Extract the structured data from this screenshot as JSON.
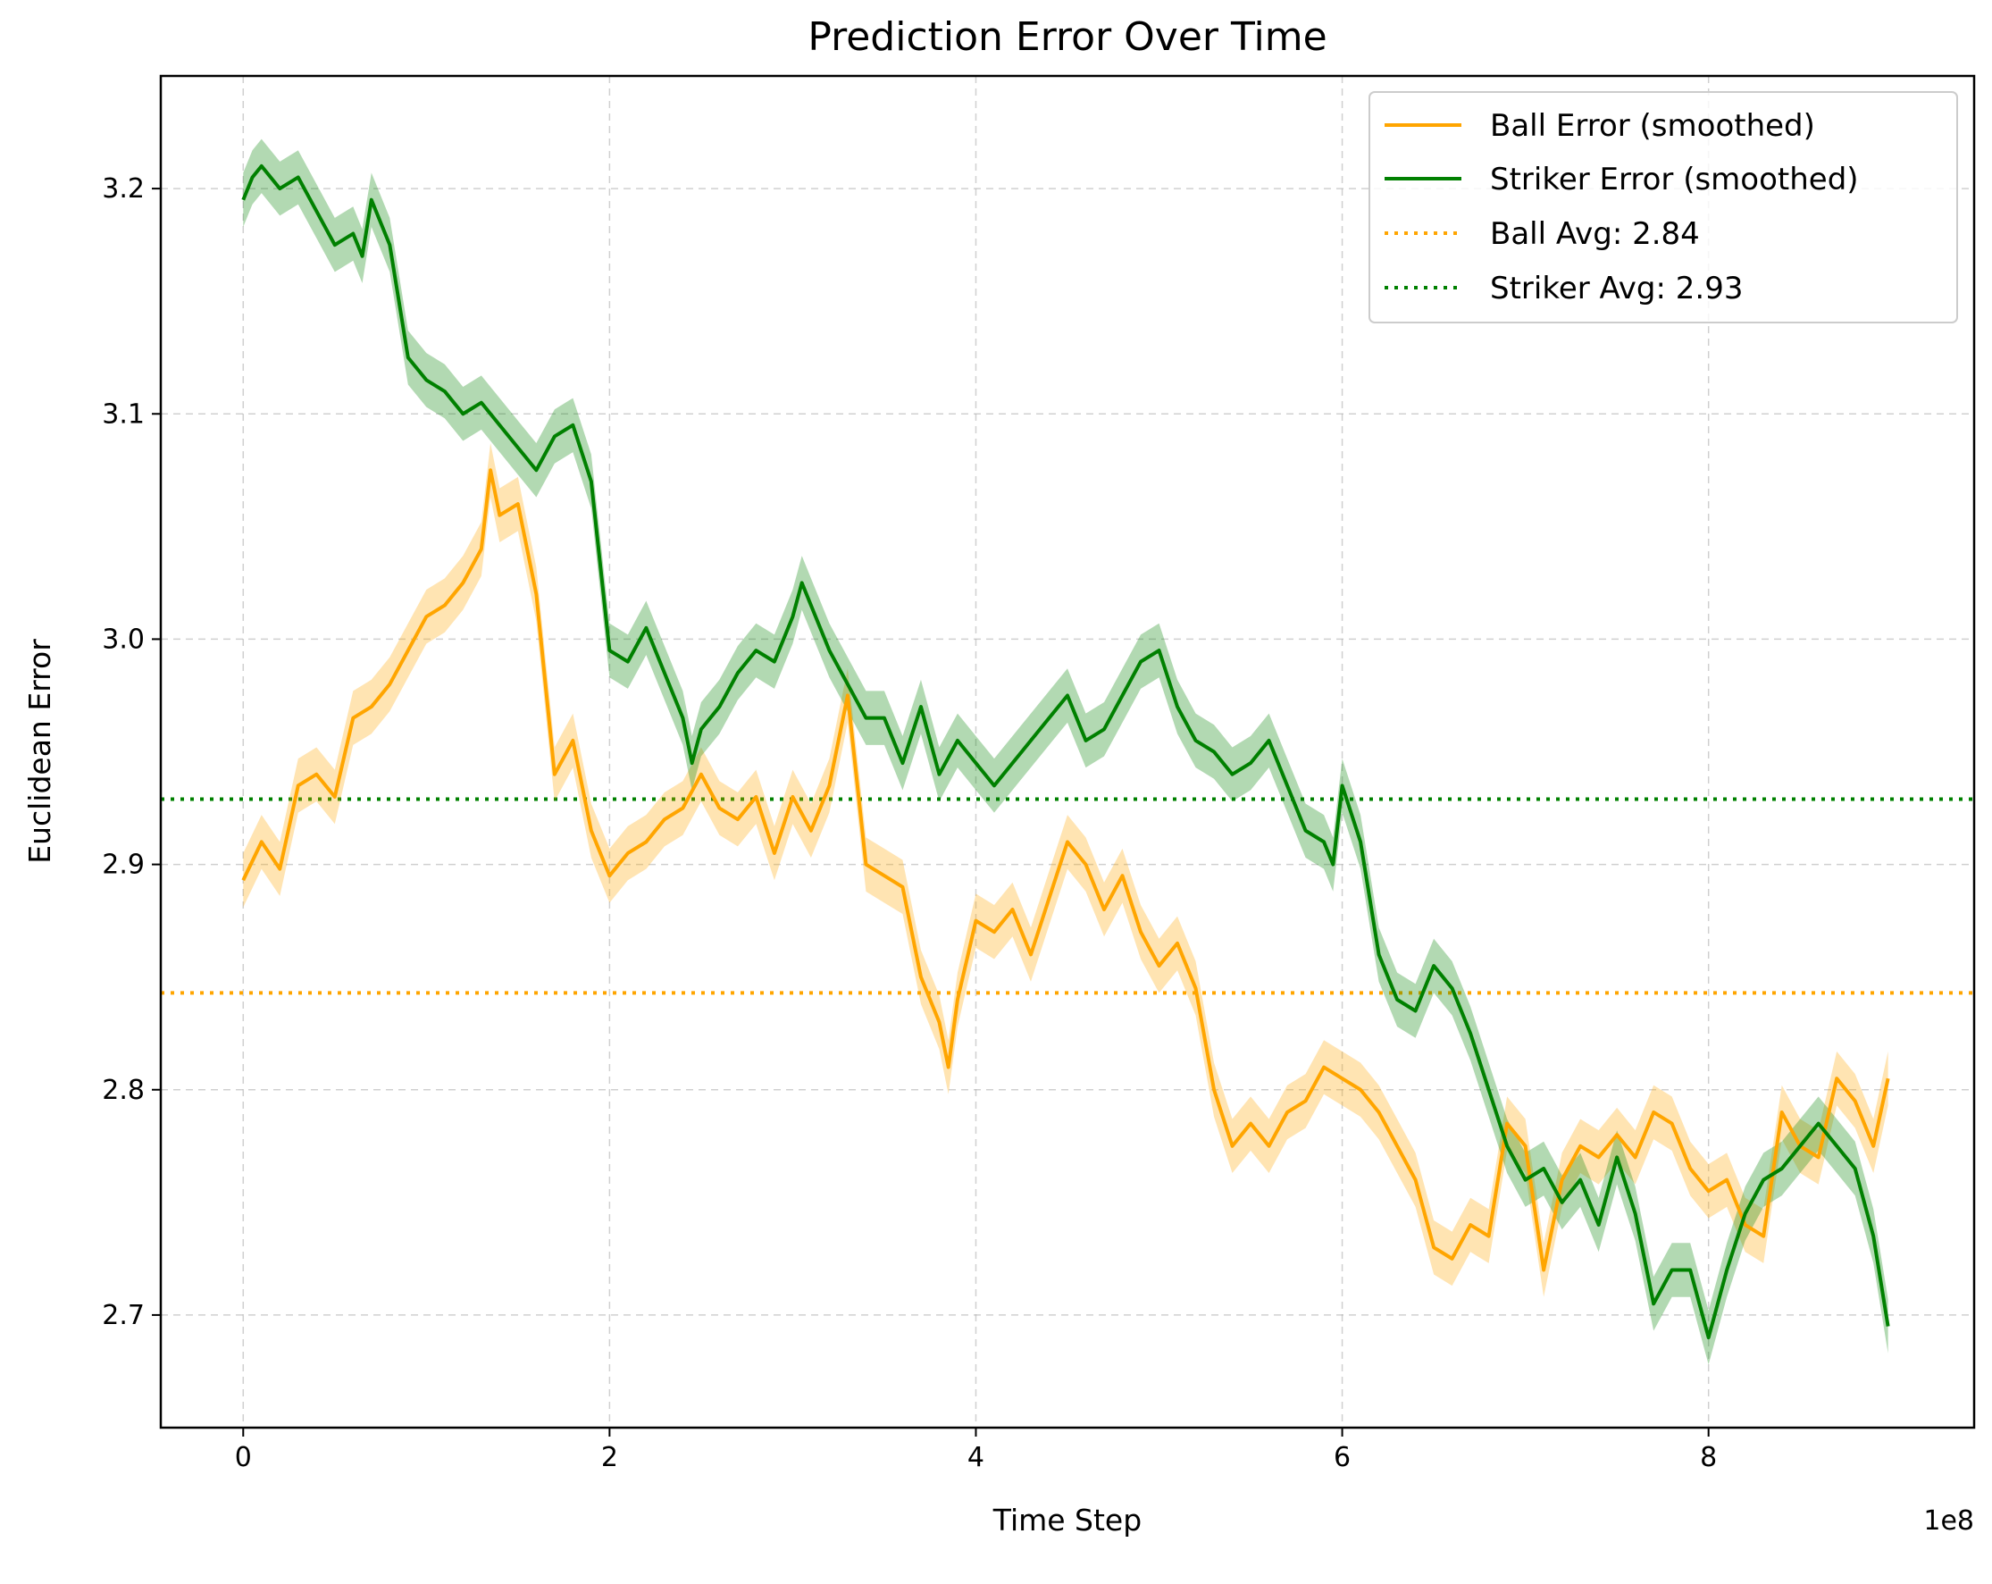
{
  "chart_data": {
    "type": "line",
    "title": "Prediction Error Over Time",
    "xlabel": "Time Step",
    "ylabel": "Euclidean Error",
    "x_offset_text": "1e8",
    "xlim": [
      -0.45,
      9.45
    ],
    "ylim": [
      2.65,
      3.25
    ],
    "x_ticks": [
      0,
      2,
      4,
      6,
      8
    ],
    "x_tick_labels": [
      "0",
      "2",
      "4",
      "6",
      "8"
    ],
    "y_ticks": [
      2.7,
      2.8,
      2.9,
      3.0,
      3.1,
      3.2
    ],
    "y_tick_labels": [
      "2.7",
      "2.8",
      "2.9",
      "3.0",
      "3.1",
      "3.2"
    ],
    "grid": true,
    "legend_position": "top-right",
    "band_halfwidth": 0.012,
    "series": [
      {
        "name": "Ball Error (smoothed)",
        "color": "#FFA500",
        "x": [
          0.0,
          0.1,
          0.2,
          0.3,
          0.4,
          0.5,
          0.6,
          0.7,
          0.8,
          0.9,
          1.0,
          1.1,
          1.2,
          1.3,
          1.35,
          1.4,
          1.5,
          1.6,
          1.7,
          1.8,
          1.9,
          2.0,
          2.1,
          2.2,
          2.3,
          2.4,
          2.5,
          2.6,
          2.7,
          2.8,
          2.9,
          3.0,
          3.1,
          3.2,
          3.3,
          3.4,
          3.5,
          3.6,
          3.7,
          3.8,
          3.85,
          3.9,
          4.0,
          4.1,
          4.2,
          4.3,
          4.4,
          4.5,
          4.6,
          4.7,
          4.8,
          4.9,
          5.0,
          5.1,
          5.2,
          5.3,
          5.4,
          5.5,
          5.6,
          5.7,
          5.8,
          5.9,
          6.0,
          6.1,
          6.2,
          6.3,
          6.4,
          6.5,
          6.6,
          6.7,
          6.8,
          6.9,
          7.0,
          7.1,
          7.2,
          7.3,
          7.4,
          7.5,
          7.6,
          7.7,
          7.8,
          7.9,
          8.0,
          8.1,
          8.2,
          8.3,
          8.4,
          8.5,
          8.6,
          8.7,
          8.8,
          8.9,
          8.98
        ],
        "y": [
          2.893,
          2.91,
          2.898,
          2.935,
          2.94,
          2.93,
          2.965,
          2.97,
          2.98,
          2.995,
          3.01,
          3.015,
          3.025,
          3.04,
          3.075,
          3.055,
          3.06,
          3.02,
          2.94,
          2.955,
          2.915,
          2.895,
          2.905,
          2.91,
          2.92,
          2.925,
          2.94,
          2.925,
          2.92,
          2.93,
          2.905,
          2.93,
          2.915,
          2.935,
          2.975,
          2.9,
          2.895,
          2.89,
          2.85,
          2.83,
          2.81,
          2.84,
          2.875,
          2.87,
          2.88,
          2.86,
          2.885,
          2.91,
          2.9,
          2.88,
          2.895,
          2.87,
          2.855,
          2.865,
          2.845,
          2.8,
          2.775,
          2.785,
          2.775,
          2.79,
          2.795,
          2.81,
          2.805,
          2.8,
          2.79,
          2.775,
          2.76,
          2.73,
          2.725,
          2.74,
          2.735,
          2.785,
          2.775,
          2.72,
          2.76,
          2.775,
          2.77,
          2.78,
          2.77,
          2.79,
          2.785,
          2.765,
          2.755,
          2.76,
          2.74,
          2.735,
          2.79,
          2.775,
          2.77,
          2.805,
          2.795,
          2.775,
          2.805
        ]
      },
      {
        "name": "Striker Error (smoothed)",
        "color": "#008000",
        "x": [
          0.0,
          0.05,
          0.1,
          0.2,
          0.3,
          0.4,
          0.5,
          0.6,
          0.65,
          0.7,
          0.8,
          0.9,
          1.0,
          1.1,
          1.2,
          1.3,
          1.4,
          1.5,
          1.6,
          1.7,
          1.8,
          1.9,
          2.0,
          2.1,
          2.2,
          2.3,
          2.4,
          2.45,
          2.5,
          2.6,
          2.7,
          2.8,
          2.9,
          3.0,
          3.05,
          3.1,
          3.2,
          3.3,
          3.4,
          3.5,
          3.6,
          3.7,
          3.8,
          3.9,
          4.0,
          4.1,
          4.2,
          4.3,
          4.4,
          4.5,
          4.6,
          4.7,
          4.8,
          4.9,
          5.0,
          5.1,
          5.2,
          5.3,
          5.4,
          5.5,
          5.6,
          5.7,
          5.8,
          5.9,
          5.95,
          6.0,
          6.1,
          6.2,
          6.3,
          6.4,
          6.5,
          6.6,
          6.7,
          6.8,
          6.9,
          7.0,
          7.1,
          7.2,
          7.3,
          7.4,
          7.5,
          7.6,
          7.7,
          7.8,
          7.9,
          8.0,
          8.1,
          8.2,
          8.3,
          8.4,
          8.5,
          8.6,
          8.7,
          8.8,
          8.9,
          8.98
        ],
        "y": [
          3.195,
          3.205,
          3.21,
          3.2,
          3.205,
          3.19,
          3.175,
          3.18,
          3.17,
          3.195,
          3.175,
          3.125,
          3.115,
          3.11,
          3.1,
          3.105,
          3.095,
          3.085,
          3.075,
          3.09,
          3.095,
          3.07,
          2.995,
          2.99,
          3.005,
          2.985,
          2.965,
          2.945,
          2.96,
          2.97,
          2.985,
          2.995,
          2.99,
          3.01,
          3.025,
          3.015,
          2.995,
          2.98,
          2.965,
          2.965,
          2.945,
          2.97,
          2.94,
          2.955,
          2.945,
          2.935,
          2.945,
          2.955,
          2.965,
          2.975,
          2.955,
          2.96,
          2.975,
          2.99,
          2.995,
          2.97,
          2.955,
          2.95,
          2.94,
          2.945,
          2.955,
          2.935,
          2.915,
          2.91,
          2.9,
          2.935,
          2.91,
          2.86,
          2.84,
          2.835,
          2.855,
          2.845,
          2.825,
          2.8,
          2.775,
          2.76,
          2.765,
          2.75,
          2.76,
          2.74,
          2.77,
          2.745,
          2.705,
          2.72,
          2.72,
          2.69,
          2.72,
          2.745,
          2.76,
          2.765,
          2.775,
          2.785,
          2.775,
          2.765,
          2.735,
          2.695
        ]
      }
    ],
    "reference_lines": [
      {
        "name": "Ball Avg: 2.84",
        "value": 2.843,
        "color": "#FFA500"
      },
      {
        "name": "Striker Avg: 2.93",
        "value": 2.929,
        "color": "#008000"
      }
    ]
  }
}
